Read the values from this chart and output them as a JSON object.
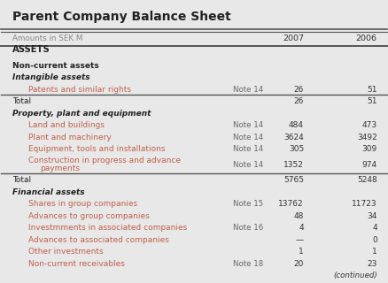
{
  "title": "Parent Company Balance Sheet",
  "bg_color": "#e8e8e8",
  "thick_line_color": "#555555",
  "title_color": "#222222",
  "section_color": "#222222",
  "subsection_color": "#222222",
  "item_color": "#c0604a",
  "note_color": "#666666",
  "value_color": "#333333",
  "col_header_color": "#888888",
  "rows": [
    {
      "type": "colheader",
      "label": "Amounts in SEK M",
      "note": "",
      "val2007": "2007",
      "val2006": "2006"
    },
    {
      "type": "section",
      "label": "ASSETS",
      "note": "",
      "val2007": "",
      "val2006": ""
    },
    {
      "type": "blank",
      "label": "",
      "note": "",
      "val2007": "",
      "val2006": ""
    },
    {
      "type": "bold",
      "label": "Non-current assets",
      "note": "",
      "val2007": "",
      "val2006": ""
    },
    {
      "type": "bolditalic",
      "label": "Intangible assets",
      "note": "",
      "val2007": "",
      "val2006": ""
    },
    {
      "type": "item",
      "label": "Patents and similar rights",
      "note": "Note 14",
      "val2007": "26",
      "val2006": "51"
    },
    {
      "type": "total",
      "label": "Total",
      "note": "",
      "val2007": "26",
      "val2006": "51"
    },
    {
      "type": "bolditalic",
      "label": "Property, plant and equipment",
      "note": "",
      "val2007": "",
      "val2006": ""
    },
    {
      "type": "item",
      "label": "Land and buildings",
      "note": "Note 14",
      "val2007": "484",
      "val2006": "473"
    },
    {
      "type": "item",
      "label": "Plant and machinery",
      "note": "Note 14",
      "val2007": "3624",
      "val2006": "3492"
    },
    {
      "type": "item",
      "label": "Equipment, tools and installations",
      "note": "Note 14",
      "val2007": "305",
      "val2006": "309"
    },
    {
      "type": "item2line",
      "label": "Construction in progress and advance|payments",
      "note": "Note 14",
      "val2007": "1352",
      "val2006": "974"
    },
    {
      "type": "total",
      "label": "Total",
      "note": "",
      "val2007": "5765",
      "val2006": "5248"
    },
    {
      "type": "bolditalic",
      "label": "Financial assets",
      "note": "",
      "val2007": "",
      "val2006": ""
    },
    {
      "type": "item",
      "label": "Shares in group companies",
      "note": "Note 15",
      "val2007": "13762",
      "val2006": "11723"
    },
    {
      "type": "item",
      "label": "Advances to group companies",
      "note": "",
      "val2007": "48",
      "val2006": "34"
    },
    {
      "type": "item",
      "label": "Investmments in associated companies",
      "note": "Note 16",
      "val2007": "4",
      "val2006": "4"
    },
    {
      "type": "item",
      "label": "Advances to associated companies",
      "note": "",
      "val2007": "—",
      "val2006": "0"
    },
    {
      "type": "item",
      "label": "Other investments",
      "note": "",
      "val2007": "1",
      "val2006": "1"
    },
    {
      "type": "item",
      "label": "Non-current receivables",
      "note": "Note 18",
      "val2007": "20",
      "val2006": "23"
    },
    {
      "type": "continued",
      "label": "",
      "note": "",
      "val2007": "",
      "val2006": "(continued)"
    }
  ]
}
